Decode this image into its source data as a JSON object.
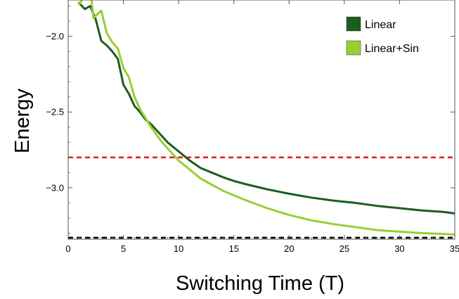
{
  "chart_data": {
    "type": "line",
    "title": "",
    "xlabel": "Switching Time (T)",
    "ylabel": "Energy",
    "xlim": [
      0,
      35
    ],
    "ylim": [
      -3.34,
      -1.76
    ],
    "x_ticks": [
      0,
      5,
      10,
      15,
      20,
      25,
      30,
      35
    ],
    "x_tick_labels": [
      "0",
      "5",
      "10",
      "15",
      "20",
      "25",
      "30",
      "35"
    ],
    "y_ticks": [
      -2.0,
      -2.5,
      -3.0
    ],
    "y_tick_labels": [
      "−2.0",
      "−2.5",
      "−3.0"
    ],
    "grid": false,
    "legend_position": "top-right",
    "series": [
      {
        "name": "Linear",
        "color": "#1a5e1e",
        "x": [
          1.0,
          1.5,
          2.0,
          2.5,
          3.0,
          3.5,
          4.0,
          4.5,
          5.0,
          5.5,
          6.0,
          6.5,
          7.0,
          7.5,
          8.0,
          8.5,
          9.0,
          10.0,
          11.0,
          12.0,
          13.0,
          14.0,
          15.0,
          16.0,
          18.0,
          20.0,
          22.0,
          24.0,
          26.0,
          28.0,
          30.0,
          32.0,
          34.0,
          35.0
        ],
        "y": [
          -1.78,
          -1.82,
          -1.8,
          -1.89,
          -2.03,
          -2.06,
          -2.1,
          -2.15,
          -2.32,
          -2.38,
          -2.46,
          -2.5,
          -2.55,
          -2.58,
          -2.62,
          -2.66,
          -2.7,
          -2.76,
          -2.82,
          -2.87,
          -2.9,
          -2.93,
          -2.955,
          -2.975,
          -3.01,
          -3.04,
          -3.065,
          -3.085,
          -3.1,
          -3.12,
          -3.135,
          -3.15,
          -3.16,
          -3.17
        ]
      },
      {
        "name": "Linear+Sin",
        "color": "#9acd32",
        "x": [
          1.0,
          1.5,
          2.0,
          2.3,
          2.7,
          3.0,
          3.5,
          4.0,
          4.5,
          5.0,
          5.5,
          6.0,
          6.5,
          7.0,
          7.5,
          8.0,
          8.5,
          9.0,
          10.0,
          11.0,
          12.0,
          13.0,
          14.0,
          15.0,
          16.0,
          18.0,
          20.0,
          22.0,
          24.0,
          26.0,
          28.0,
          30.0,
          32.0,
          34.0,
          35.0
        ],
        "y": [
          -1.79,
          -1.73,
          -1.69,
          -1.88,
          -1.85,
          -1.83,
          -1.98,
          -2.04,
          -2.08,
          -2.21,
          -2.27,
          -2.4,
          -2.48,
          -2.54,
          -2.6,
          -2.65,
          -2.7,
          -2.74,
          -2.82,
          -2.88,
          -2.94,
          -2.98,
          -3.02,
          -3.05,
          -3.08,
          -3.135,
          -3.18,
          -3.215,
          -3.24,
          -3.26,
          -3.28,
          -3.29,
          -3.3,
          -3.305,
          -3.31
        ]
      }
    ],
    "reference_lines": [
      {
        "y": -2.8,
        "color": "#e31a1c",
        "style": "dashed"
      },
      {
        "y": -3.33,
        "color": "#000000",
        "style": "dashed"
      }
    ]
  }
}
